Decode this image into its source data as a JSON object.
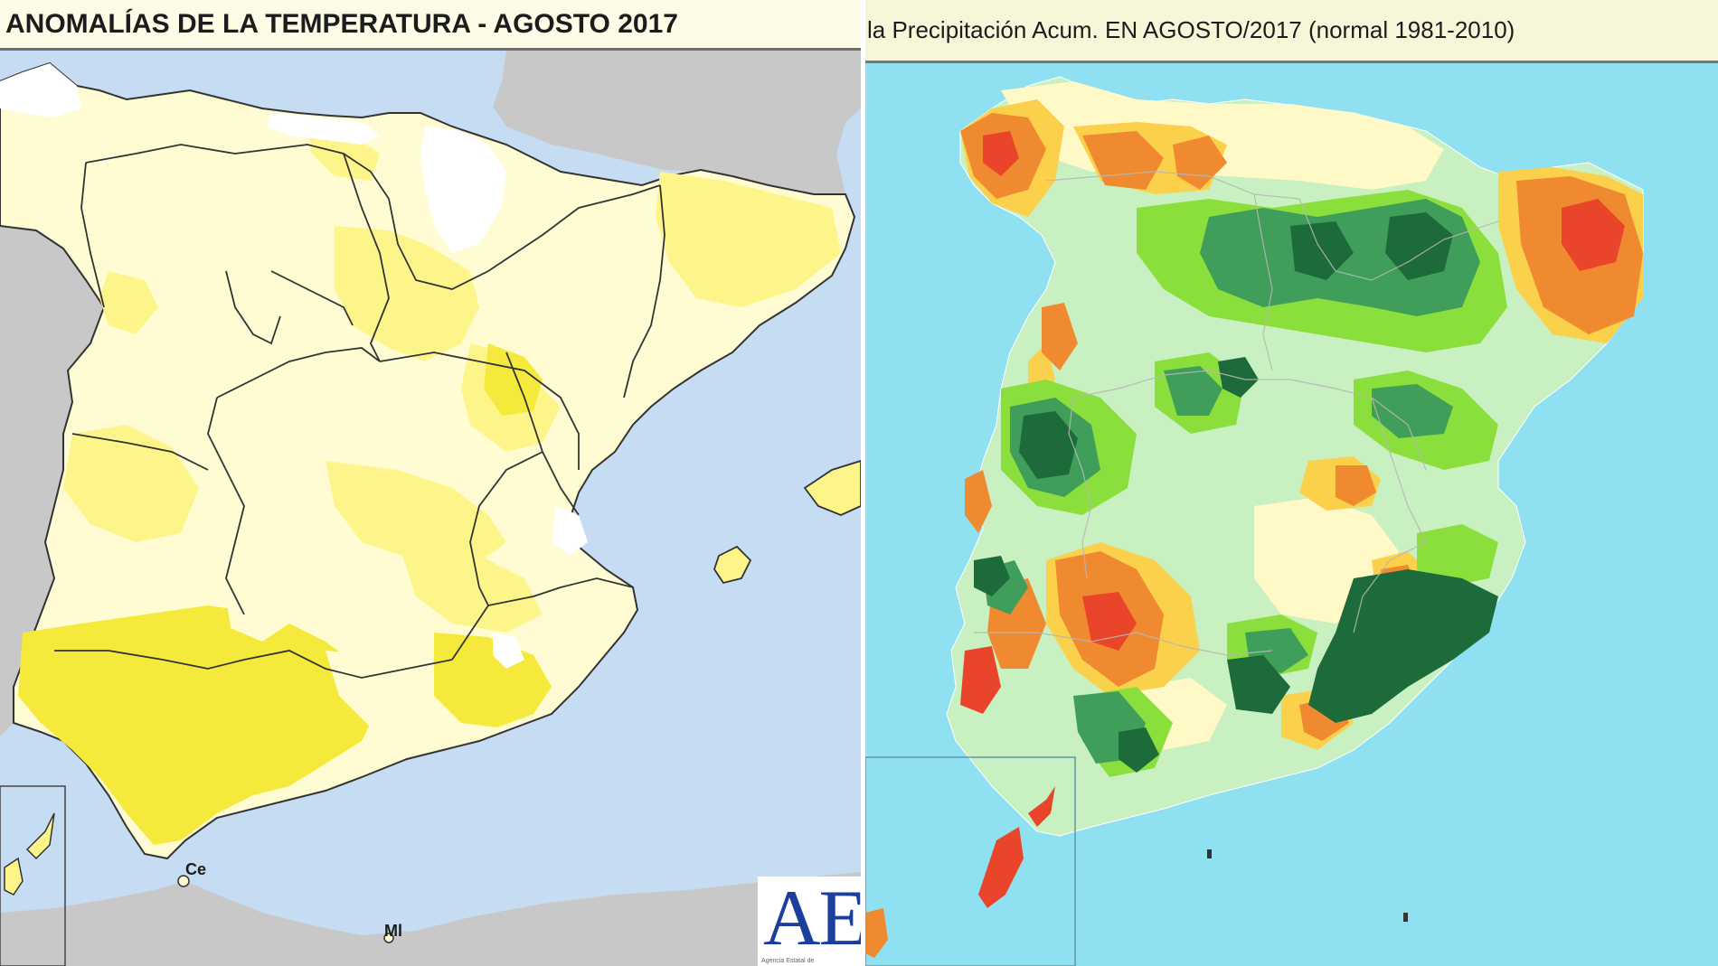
{
  "left_map": {
    "title": "ANOMALÍAS DE LA TEMPERATURA - AGOSTO 2017",
    "labels": {
      "ceuta": "Ce",
      "melilla": "Ml"
    },
    "logo": {
      "text": "AE",
      "subtitle": "Agencia Estatal de"
    },
    "colors": {
      "sea": "#c6dcf2",
      "land_outside": "#c8c8c8",
      "anomaly_near_zero": "#ffffff",
      "anomaly_light": "#fffbd2",
      "anomaly_medium": "#fdf58a",
      "anomaly_high": "#f5ea3c",
      "boundaries": "#333333"
    }
  },
  "right_map": {
    "title": "la Precipitación Acum. EN  AGOSTO/2017  (normal 1981-2010)",
    "colors": {
      "sea": "#8fe0f0",
      "very_dry": "#e8452a",
      "dry": "#f08a30",
      "slightly_dry": "#fbd04a",
      "near_normal": "#fef9c6",
      "slightly_wet": "#c8f0c0",
      "wet": "#8bdf3c",
      "very_wet": "#3f9f5a",
      "extremely_wet": "#1d6b3a"
    }
  }
}
